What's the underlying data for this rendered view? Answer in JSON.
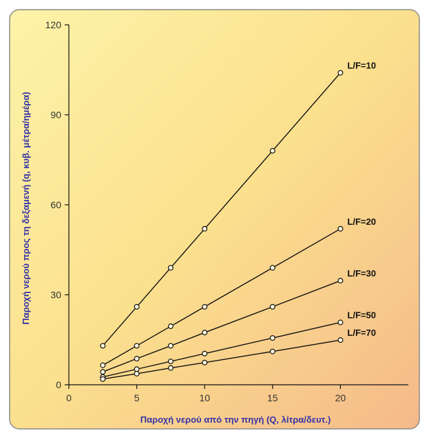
{
  "chart_data": {
    "type": "line",
    "title": "",
    "xlabel": "Παροχή νερού από την πηγή (Q, λίτρα/δευτ.)",
    "ylabel": "Παροχή νερού προς τη δεξαμενή (q, κυβ. μέτρα/ημέρα)",
    "xlim": [
      0,
      25
    ],
    "ylim": [
      0,
      120
    ],
    "x_ticks": [
      "0",
      "5",
      "10",
      "15",
      "20"
    ],
    "x_tick_values": [
      0,
      5,
      10,
      15,
      20
    ],
    "y_ticks": [
      "0",
      "30",
      "60",
      "90",
      "120"
    ],
    "y_tick_values": [
      0,
      30,
      60,
      90,
      120
    ],
    "x": [
      2.5,
      5,
      7.5,
      10,
      15,
      20
    ],
    "series": [
      {
        "name": "L/F=10",
        "values": [
          13,
          26,
          39,
          52,
          78,
          104
        ]
      },
      {
        "name": "L/F=20",
        "values": [
          6.5,
          13,
          19.5,
          26,
          39,
          52
        ]
      },
      {
        "name": "L/F=30",
        "values": [
          4.3,
          8.7,
          13,
          17.4,
          26,
          34.7
        ]
      },
      {
        "name": "L/F=50",
        "values": [
          2.6,
          5.2,
          7.8,
          10.4,
          15.6,
          20.8
        ]
      },
      {
        "name": "L/F=70",
        "values": [
          1.9,
          3.7,
          5.6,
          7.4,
          11.1,
          14.9
        ]
      }
    ],
    "grid": false,
    "legend": "series labels at right end of lines",
    "colors": {
      "line": "#111111",
      "axis_text": "#3333a8",
      "tick_text": "#333333",
      "border": "#8a8a8a",
      "bg_top_left": "#fbeb9a",
      "bg_bottom_right": "#f6c38c"
    }
  }
}
